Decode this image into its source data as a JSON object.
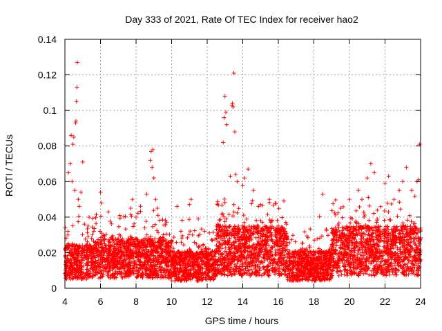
{
  "chart_data": {
    "type": "scatter",
    "title": "Day 333 of 2021, Rate Of TEC Index for receiver hao2",
    "xlabel": "GPS time / hours",
    "ylabel": "ROTI / TECUs",
    "xlim": [
      4,
      24
    ],
    "ylim": [
      0,
      0.14
    ],
    "x_ticks": [
      "4",
      "6",
      "8",
      "10",
      "12",
      "14",
      "16",
      "18",
      "20",
      "22",
      "24"
    ],
    "y_ticks": [
      "0",
      "0.02",
      "0.04",
      "0.06",
      "0.08",
      "0.1",
      "0.12",
      "0.14"
    ],
    "grid": true,
    "marker": "+",
    "colors": {
      "points": "#ff0000",
      "grid": "#a0a0a0",
      "axes": "#000000"
    },
    "series": [
      {
        "points": [
          [
            4.2,
            0.065
          ],
          [
            4.3,
            0.07
          ],
          [
            4.35,
            0.086
          ],
          [
            4.45,
            0.081
          ],
          [
            4.5,
            0.085
          ],
          [
            4.4,
            0.06
          ],
          [
            4.55,
            0.055
          ],
          [
            4.6,
            0.093
          ],
          [
            4.62,
            0.094
          ],
          [
            4.65,
            0.105
          ],
          [
            4.68,
            0.113
          ],
          [
            4.7,
            0.127
          ],
          [
            4.75,
            0.05
          ],
          [
            4.8,
            0.046
          ],
          [
            4.9,
            0.054
          ],
          [
            5.0,
            0.071
          ],
          [
            5.1,
            0.036
          ],
          [
            5.3,
            0.035
          ],
          [
            5.5,
            0.028
          ],
          [
            6.0,
            0.054
          ],
          [
            6.05,
            0.048
          ],
          [
            7.7,
            0.045
          ],
          [
            7.8,
            0.05
          ],
          [
            8.0,
            0.04
          ],
          [
            8.6,
            0.053
          ],
          [
            8.8,
            0.072
          ],
          [
            8.85,
            0.077
          ],
          [
            8.9,
            0.068
          ],
          [
            8.95,
            0.078
          ],
          [
            9.0,
            0.062
          ],
          [
            9.1,
            0.05
          ],
          [
            9.2,
            0.045
          ],
          [
            10.3,
            0.046
          ],
          [
            11.0,
            0.047
          ],
          [
            11.1,
            0.05
          ],
          [
            11.5,
            0.039
          ],
          [
            12.6,
            0.036
          ],
          [
            12.9,
            0.082
          ],
          [
            12.95,
            0.096
          ],
          [
            13.0,
            0.108
          ],
          [
            13.05,
            0.099
          ],
          [
            13.1,
            0.092
          ],
          [
            13.3,
            0.063
          ],
          [
            13.4,
            0.103
          ],
          [
            13.42,
            0.104
          ],
          [
            13.45,
            0.102
          ],
          [
            13.5,
            0.121
          ],
          [
            13.55,
            0.088
          ],
          [
            13.6,
            0.064
          ],
          [
            13.7,
            0.06
          ],
          [
            14.0,
            0.058
          ],
          [
            14.1,
            0.062
          ],
          [
            14.3,
            0.067
          ],
          [
            14.6,
            0.055
          ],
          [
            15.0,
            0.047
          ],
          [
            15.5,
            0.05
          ],
          [
            16.0,
            0.035
          ],
          [
            16.5,
            0.028
          ],
          [
            18.5,
            0.053
          ],
          [
            19.5,
            0.045
          ],
          [
            20.0,
            0.05
          ],
          [
            20.5,
            0.055
          ],
          [
            21.0,
            0.062
          ],
          [
            21.2,
            0.07
          ],
          [
            21.4,
            0.065
          ],
          [
            22.0,
            0.059
          ],
          [
            22.2,
            0.063
          ],
          [
            22.5,
            0.05
          ],
          [
            22.8,
            0.055
          ],
          [
            23.0,
            0.06
          ],
          [
            23.2,
            0.068
          ],
          [
            23.5,
            0.055
          ],
          [
            23.8,
            0.06
          ],
          [
            23.9,
            0.061
          ],
          [
            23.95,
            0.081
          ]
        ]
      }
    ]
  }
}
